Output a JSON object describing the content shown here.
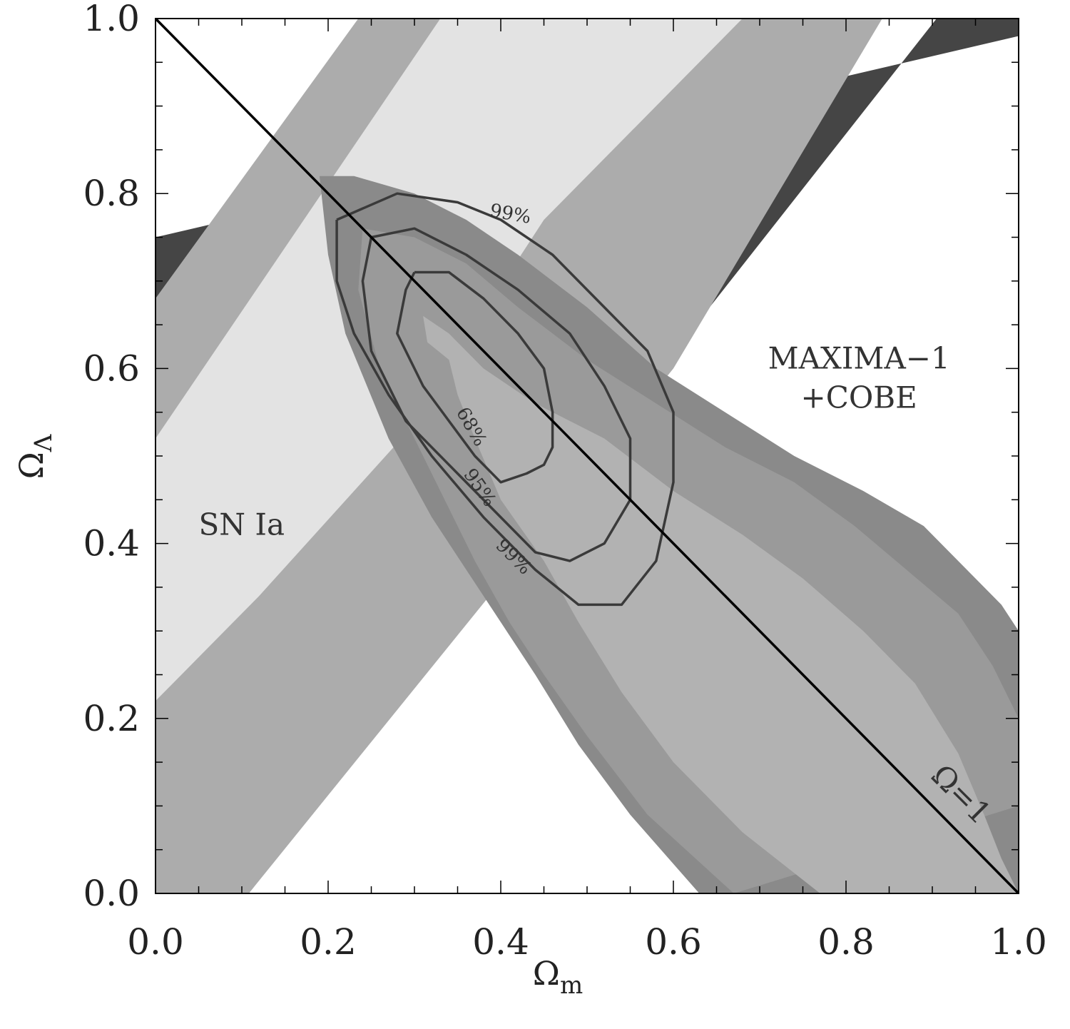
{
  "chart_data": {
    "type": "contour",
    "xlabel": "Ω",
    "xlabel_sub": "m",
    "ylabel": "Ω",
    "ylabel_sub": "Λ",
    "xlim": [
      0.0,
      1.0
    ],
    "ylim": [
      0.0,
      1.0
    ],
    "xticks": [
      "0.0",
      "0.2",
      "0.4",
      "0.6",
      "0.8",
      "1.0"
    ],
    "yticks": [
      "0.0",
      "0.2",
      "0.4",
      "0.6",
      "0.8",
      "1.0"
    ],
    "grid": false,
    "colors": {
      "sn_light": "#e3e3e3",
      "sn_mid": "#acacac",
      "sn_dark": "#454545",
      "max_outer": "#8a8a8a",
      "max_mid": "#9a9a9a",
      "max_inner": "#b2b2b2",
      "contour_line": "#3a3a3a",
      "flat_line": "#000000"
    },
    "sn_ia_bands": [
      {
        "level": "dark",
        "polygon": [
          [
            0.0,
            0.0
          ],
          [
            0.108,
            0.0
          ],
          [
            0.905,
            1.0
          ],
          [
            1.0,
            1.0
          ],
          [
            1.0,
            0.98
          ],
          [
            0.0,
            0.75
          ]
        ]
      },
      {
        "level": "mid",
        "polygon": [
          [
            0.0,
            0.0
          ],
          [
            0.0,
            0.68
          ],
          [
            0.235,
            1.0
          ],
          [
            0.842,
            1.0
          ],
          [
            0.6,
            0.6
          ],
          [
            0.108,
            0.0
          ]
        ]
      },
      {
        "level": "light",
        "polygon": [
          [
            0.0,
            0.22
          ],
          [
            0.0,
            0.52
          ],
          [
            0.33,
            1.0
          ],
          [
            0.68,
            1.0
          ],
          [
            0.45,
            0.77
          ],
          [
            0.285,
            0.52
          ],
          [
            0.12,
            0.34
          ]
        ]
      }
    ],
    "maxima_regions": [
      {
        "level": "outer",
        "polygon": [
          [
            0.19,
            0.82
          ],
          [
            0.23,
            0.82
          ],
          [
            0.3,
            0.8
          ],
          [
            0.36,
            0.77
          ],
          [
            0.42,
            0.73
          ],
          [
            0.5,
            0.67
          ],
          [
            0.58,
            0.6
          ],
          [
            0.66,
            0.55
          ],
          [
            0.74,
            0.5
          ],
          [
            0.82,
            0.46
          ],
          [
            0.89,
            0.42
          ],
          [
            0.94,
            0.37
          ],
          [
            0.98,
            0.33
          ],
          [
            1.0,
            0.3
          ],
          [
            1.0,
            0.0
          ],
          [
            0.63,
            0.0
          ],
          [
            0.55,
            0.09
          ],
          [
            0.49,
            0.17
          ],
          [
            0.44,
            0.25
          ],
          [
            0.4,
            0.31
          ],
          [
            0.36,
            0.37
          ],
          [
            0.32,
            0.43
          ],
          [
            0.27,
            0.52
          ],
          [
            0.22,
            0.64
          ],
          [
            0.2,
            0.73
          ]
        ]
      },
      {
        "level": "mid",
        "polygon": [
          [
            0.24,
            0.76
          ],
          [
            0.3,
            0.75
          ],
          [
            0.36,
            0.72
          ],
          [
            0.42,
            0.67
          ],
          [
            0.5,
            0.61
          ],
          [
            0.58,
            0.56
          ],
          [
            0.66,
            0.51
          ],
          [
            0.74,
            0.47
          ],
          [
            0.81,
            0.42
          ],
          [
            0.87,
            0.37
          ],
          [
            0.93,
            0.32
          ],
          [
            0.97,
            0.26
          ],
          [
            1.0,
            0.2
          ],
          [
            1.0,
            0.1
          ],
          [
            0.67,
            0.0
          ],
          [
            0.57,
            0.09
          ],
          [
            0.5,
            0.18
          ],
          [
            0.45,
            0.25
          ],
          [
            0.41,
            0.31
          ],
          [
            0.37,
            0.38
          ],
          [
            0.34,
            0.44
          ],
          [
            0.3,
            0.52
          ],
          [
            0.26,
            0.6
          ],
          [
            0.235,
            0.69
          ]
        ]
      },
      {
        "level": "inner",
        "polygon": [
          [
            0.31,
            0.66
          ],
          [
            0.34,
            0.64
          ],
          [
            0.38,
            0.6
          ],
          [
            0.44,
            0.56
          ],
          [
            0.52,
            0.52
          ],
          [
            0.6,
            0.46
          ],
          [
            0.68,
            0.41
          ],
          [
            0.75,
            0.36
          ],
          [
            0.82,
            0.3
          ],
          [
            0.88,
            0.24
          ],
          [
            0.93,
            0.16
          ],
          [
            0.96,
            0.09
          ],
          [
            0.98,
            0.04
          ],
          [
            1.0,
            0.0
          ],
          [
            0.77,
            0.0
          ],
          [
            0.68,
            0.07
          ],
          [
            0.6,
            0.15
          ],
          [
            0.54,
            0.23
          ],
          [
            0.49,
            0.31
          ],
          [
            0.45,
            0.38
          ],
          [
            0.4,
            0.45
          ],
          [
            0.37,
            0.52
          ],
          [
            0.35,
            0.57
          ],
          [
            0.34,
            0.61
          ],
          [
            0.315,
            0.63
          ]
        ]
      }
    ],
    "contours": [
      {
        "label": "68%",
        "points": [
          [
            0.3,
            0.71
          ],
          [
            0.34,
            0.71
          ],
          [
            0.38,
            0.68
          ],
          [
            0.42,
            0.64
          ],
          [
            0.45,
            0.6
          ],
          [
            0.46,
            0.55
          ],
          [
            0.46,
            0.51
          ],
          [
            0.45,
            0.49
          ],
          [
            0.43,
            0.48
          ],
          [
            0.4,
            0.47
          ],
          [
            0.37,
            0.5
          ],
          [
            0.34,
            0.54
          ],
          [
            0.31,
            0.58
          ],
          [
            0.28,
            0.64
          ],
          [
            0.29,
            0.69
          ],
          [
            0.3,
            0.71
          ]
        ]
      },
      {
        "label": "95%",
        "points": [
          [
            0.25,
            0.75
          ],
          [
            0.3,
            0.76
          ],
          [
            0.36,
            0.73
          ],
          [
            0.42,
            0.69
          ],
          [
            0.48,
            0.64
          ],
          [
            0.52,
            0.58
          ],
          [
            0.55,
            0.52
          ],
          [
            0.55,
            0.45
          ],
          [
            0.52,
            0.4
          ],
          [
            0.48,
            0.38
          ],
          [
            0.44,
            0.39
          ],
          [
            0.39,
            0.44
          ],
          [
            0.34,
            0.49
          ],
          [
            0.29,
            0.54
          ],
          [
            0.25,
            0.62
          ],
          [
            0.24,
            0.7
          ],
          [
            0.25,
            0.75
          ]
        ]
      },
      {
        "label": "99%",
        "points": [
          [
            0.21,
            0.77
          ],
          [
            0.28,
            0.8
          ],
          [
            0.35,
            0.79
          ],
          [
            0.4,
            0.77
          ],
          [
            0.46,
            0.73
          ],
          [
            0.52,
            0.67
          ],
          [
            0.57,
            0.62
          ],
          [
            0.6,
            0.55
          ],
          [
            0.6,
            0.47
          ],
          [
            0.58,
            0.38
          ],
          [
            0.54,
            0.33
          ],
          [
            0.49,
            0.33
          ],
          [
            0.44,
            0.37
          ],
          [
            0.38,
            0.43
          ],
          [
            0.32,
            0.5
          ],
          [
            0.27,
            0.57
          ],
          [
            0.23,
            0.64
          ],
          [
            0.21,
            0.7
          ],
          [
            0.21,
            0.77
          ]
        ]
      }
    ],
    "contour_labels": [
      {
        "text": "99%",
        "x": 0.41,
        "y": 0.77,
        "angle": 10
      },
      {
        "text": "68%",
        "x": 0.36,
        "y": 0.53,
        "angle": 60
      },
      {
        "text": "95%",
        "x": 0.37,
        "y": 0.46,
        "angle": 55
      },
      {
        "text": "99%",
        "x": 0.41,
        "y": 0.38,
        "angle": 45
      }
    ],
    "flat_line": {
      "label": "Ω=1",
      "from": [
        0.0,
        1.0
      ],
      "to": [
        1.0,
        0.0
      ]
    },
    "annotations": [
      {
        "text": "SN Ia",
        "x": 0.05,
        "y": 0.41
      },
      {
        "text": "MAXIMA−1",
        "x": 0.815,
        "y": 0.6
      },
      {
        "text": "+COBE",
        "x": 0.815,
        "y": 0.555
      }
    ]
  }
}
